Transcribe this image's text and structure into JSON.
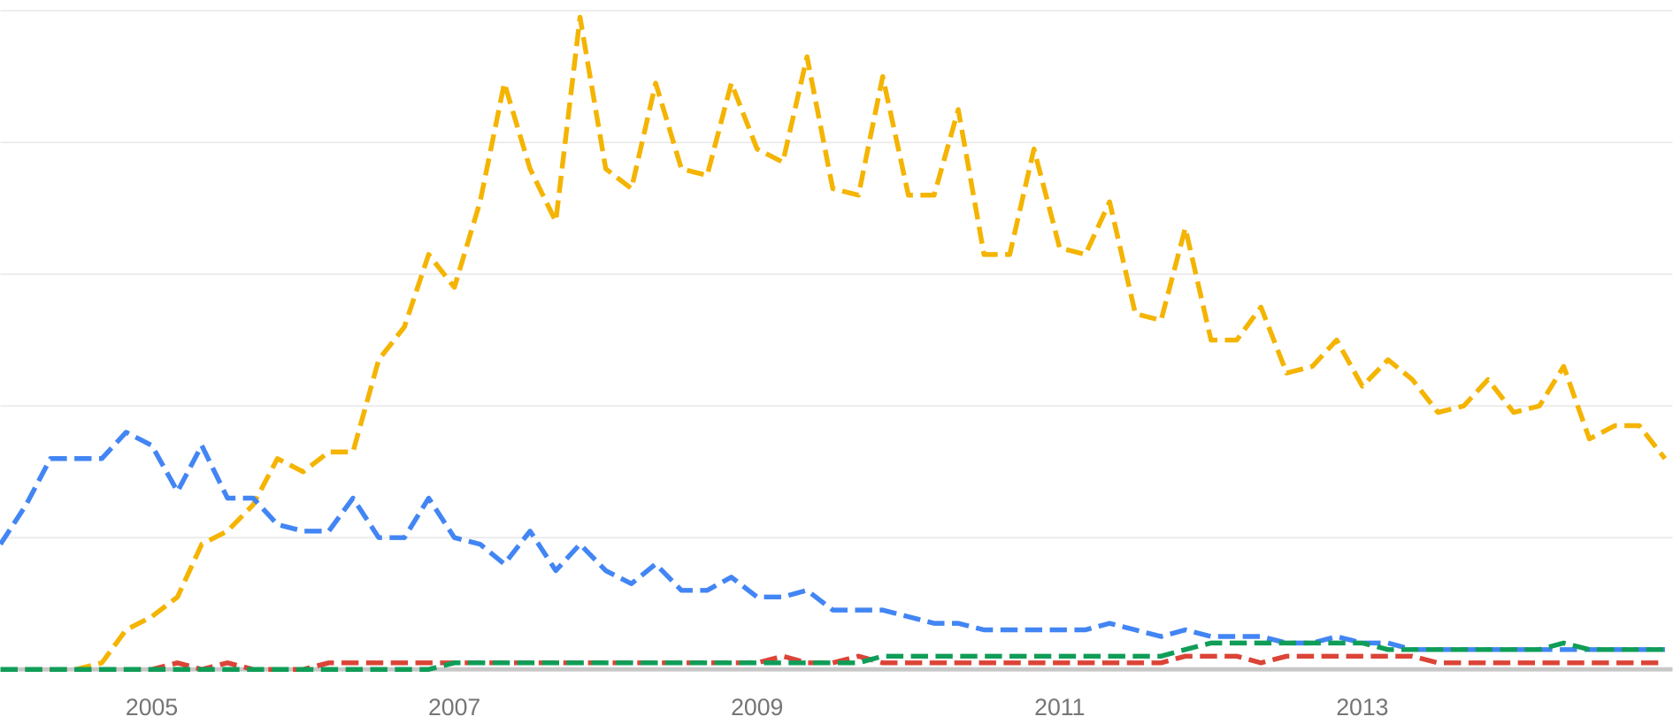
{
  "chart_data": {
    "type": "line",
    "x": [
      2004,
      2004.17,
      2004.33,
      2004.5,
      2004.67,
      2004.83,
      2005,
      2005.17,
      2005.33,
      2005.5,
      2005.67,
      2005.83,
      2006,
      2006.17,
      2006.33,
      2006.5,
      2006.67,
      2006.83,
      2007,
      2007.17,
      2007.33,
      2007.5,
      2007.67,
      2007.83,
      2008,
      2008.17,
      2008.33,
      2008.5,
      2008.67,
      2008.83,
      2009,
      2009.17,
      2009.33,
      2009.5,
      2009.67,
      2009.83,
      2010,
      2010.17,
      2010.33,
      2010.5,
      2010.67,
      2010.83,
      2011,
      2011.17,
      2011.33,
      2011.5,
      2011.67,
      2011.83,
      2012,
      2012.17,
      2012.33,
      2012.5,
      2012.67,
      2012.83,
      2013,
      2013.17,
      2013.33,
      2013.5,
      2013.67,
      2013.83,
      2014,
      2014.17,
      2014.33,
      2014.5,
      2014.67,
      2014.83,
      2015
    ],
    "series": [
      {
        "color": "#f4b400",
        "values": [
          0,
          0,
          0,
          0,
          1,
          6,
          8,
          11,
          19,
          21,
          25,
          32,
          30,
          33,
          33,
          47,
          52,
          63,
          58,
          71,
          89,
          76,
          68,
          99,
          76,
          73,
          89,
          76,
          75,
          89,
          79,
          77,
          93,
          73,
          72,
          90,
          72,
          72,
          85,
          63,
          63,
          79,
          64,
          63,
          71,
          54,
          53,
          67,
          50,
          50,
          55,
          45,
          46,
          50,
          43,
          47,
          44,
          39,
          40,
          44,
          39,
          40,
          46,
          35,
          37,
          37,
          32
        ]
      },
      {
        "color": "#4285f4",
        "values": [
          19,
          25,
          32,
          32,
          32,
          36,
          34,
          27,
          34,
          26,
          26,
          22,
          21,
          21,
          26,
          20,
          20,
          26,
          20,
          19,
          16,
          21,
          15,
          19,
          15,
          13,
          16,
          12,
          12,
          14,
          11,
          11,
          12,
          9,
          9,
          9,
          8,
          7,
          7,
          6,
          6,
          6,
          6,
          6,
          7,
          6,
          5,
          6,
          5,
          5,
          5,
          4,
          4,
          5,
          4,
          4,
          3,
          3,
          3,
          3,
          3,
          3,
          3,
          3,
          3,
          3,
          3
        ]
      },
      {
        "color": "#db4437",
        "values": [
          0,
          0,
          0,
          0,
          0,
          0,
          0,
          1,
          0,
          1,
          0,
          0,
          0,
          1,
          1,
          1,
          1,
          1,
          1,
          1,
          1,
          1,
          1,
          1,
          1,
          1,
          1,
          1,
          1,
          1,
          1,
          2,
          1,
          1,
          2,
          1,
          1,
          1,
          1,
          1,
          1,
          1,
          1,
          1,
          1,
          1,
          1,
          2,
          2,
          2,
          1,
          2,
          2,
          2,
          2,
          2,
          2,
          1,
          1,
          1,
          1,
          1,
          1,
          1,
          1,
          1,
          1
        ]
      },
      {
        "color": "#0f9d58",
        "values": [
          0,
          0,
          0,
          0,
          0,
          0,
          0,
          0,
          0,
          0,
          0,
          0,
          0,
          0,
          0,
          0,
          0,
          0,
          1,
          1,
          1,
          1,
          1,
          1,
          1,
          1,
          1,
          1,
          1,
          1,
          1,
          1,
          1,
          1,
          1,
          2,
          2,
          2,
          2,
          2,
          2,
          2,
          2,
          2,
          2,
          2,
          2,
          3,
          4,
          4,
          4,
          4,
          4,
          4,
          4,
          3,
          3,
          3,
          3,
          3,
          3,
          3,
          4,
          3,
          3,
          3,
          3
        ]
      }
    ],
    "xlim": [
      2004,
      2015.05
    ],
    "xticks": [
      2005,
      2007,
      2009,
      2011,
      2013
    ],
    "ylim": [
      0,
      100
    ],
    "yticks": [
      0,
      20,
      40,
      60,
      80,
      100
    ],
    "grid": true,
    "dashed": true
  }
}
